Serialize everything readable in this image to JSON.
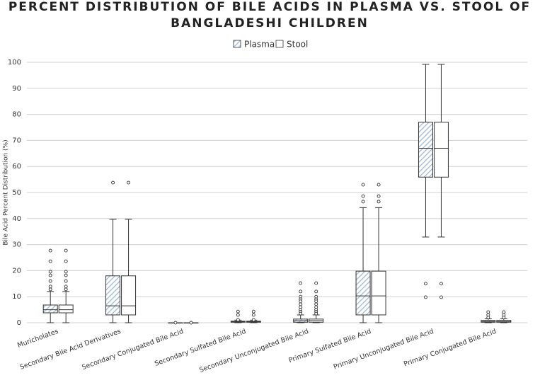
{
  "chart_data": {
    "type": "box",
    "title": [
      "PERCENT DISTRIBUTION OF BILE ACIDS IN PLASMA VS. STOOL OF",
      "BANGLADESHI CHILDREN"
    ],
    "y_label": "Bile Acid Percent Distribution (%)",
    "categories": [
      "Muricholates",
      "Secondary Bile Acid Derivatives",
      "Secondary Conjugated Bile Acid",
      "Secondary Sulfated Bile Acid",
      "Secondary Unconjugated Bile Acid",
      "Primary Sulfated Bile Acid",
      "Primary Unconjugated Bile Acid",
      "Primary Conjugated Bile Acid"
    ],
    "ylim": [
      0,
      100
    ],
    "yticks": [
      0,
      10,
      20,
      30,
      40,
      50,
      60,
      70,
      80,
      90,
      100
    ],
    "grid": true,
    "legend": "top",
    "series": [
      {
        "name": "Plasma",
        "color": "#9fb6d6",
        "pattern": "hatch",
        "values": [
          {
            "min": 0,
            "q1": 3.8,
            "median": 5,
            "q3": 6.8,
            "max": 12,
            "outliers": [
              27.7,
              23.6,
              19.6,
              18.2,
              16,
              13.9,
              12.8
            ]
          },
          {
            "min": 0,
            "q1": 3,
            "median": 6.5,
            "q3": 18,
            "max": 39.7,
            "outliers": [
              53.8
            ]
          },
          {
            "min": 0,
            "q1": 0,
            "median": 0,
            "q3": 0,
            "max": 0,
            "outliers": [
              0
            ]
          },
          {
            "min": 0,
            "q1": 0.2,
            "median": 0.4,
            "q3": 0.6,
            "max": 1,
            "outliers": [
              4.3,
              3,
              1.1
            ]
          },
          {
            "min": 0,
            "q1": 0.2,
            "median": 0.8,
            "q3": 1.4,
            "max": 3,
            "outliers": [
              15.2,
              12,
              10,
              9,
              8.2,
              7.1,
              6,
              5,
              4.2,
              3.5
            ]
          },
          {
            "min": 0,
            "q1": 3,
            "median": 10.3,
            "q3": 19.8,
            "max": 44.2,
            "outliers": [
              53,
              48.6,
              46.5
            ]
          },
          {
            "min": 32.9,
            "q1": 55.9,
            "median": 67,
            "q3": 77,
            "max": 99.2,
            "outliers": [
              15,
              9.8
            ]
          },
          {
            "min": 0,
            "q1": 0.2,
            "median": 0.5,
            "q3": 0.9,
            "max": 1.5,
            "outliers": [
              4.1,
              3,
              2
            ]
          }
        ]
      },
      {
        "name": "Stool",
        "color": "#ffffff",
        "pattern": "solid",
        "values": [
          {
            "min": 0,
            "q1": 3.8,
            "median": 5,
            "q3": 6.8,
            "max": 12,
            "outliers": [
              27.7,
              23.6,
              19.6,
              18.2,
              16,
              13.9,
              12.8
            ]
          },
          {
            "min": 0,
            "q1": 3,
            "median": 6.5,
            "q3": 18,
            "max": 39.7,
            "outliers": [
              53.8
            ]
          },
          {
            "min": 0,
            "q1": 0,
            "median": 0,
            "q3": 0,
            "max": 0,
            "outliers": [
              0
            ]
          },
          {
            "min": 0,
            "q1": 0.2,
            "median": 0.4,
            "q3": 0.6,
            "max": 1,
            "outliers": [
              4.3,
              3,
              1.1
            ]
          },
          {
            "min": 0,
            "q1": 0.2,
            "median": 0.8,
            "q3": 1.4,
            "max": 3,
            "outliers": [
              15.2,
              12,
              10,
              9,
              8.2,
              7.1,
              6,
              5,
              4.2,
              3.5
            ]
          },
          {
            "min": 0,
            "q1": 3,
            "median": 10.3,
            "q3": 19.8,
            "max": 44.2,
            "outliers": [
              53,
              48.6,
              46.5
            ]
          },
          {
            "min": 32.9,
            "q1": 55.9,
            "median": 67,
            "q3": 77,
            "max": 99.2,
            "outliers": [
              15,
              9.8
            ]
          },
          {
            "min": 0,
            "q1": 0.2,
            "median": 0.5,
            "q3": 0.9,
            "max": 1.5,
            "outliers": [
              4.1,
              3,
              2
            ]
          }
        ]
      }
    ]
  }
}
